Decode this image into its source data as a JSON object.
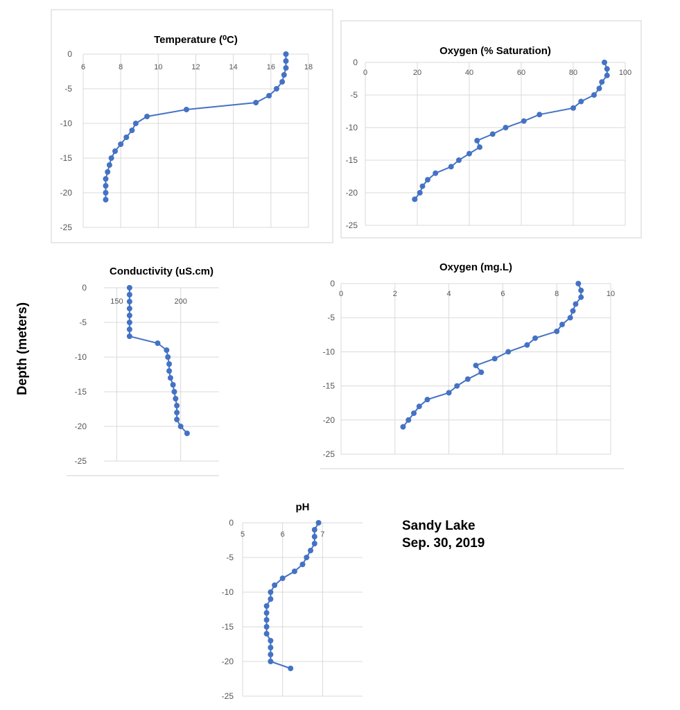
{
  "figure": {
    "ylabel": "Depth (meters)",
    "lake": "Sandy Lake",
    "date": "Sep. 30, 2019"
  },
  "chart_data": [
    {
      "id": "temperature",
      "type": "scatter",
      "title": "Temperature (⁰C)",
      "xlim": [
        6,
        18
      ],
      "xticks": [
        6,
        8,
        10,
        12,
        14,
        16,
        18
      ],
      "ylim": [
        -25,
        0
      ],
      "yticks": [
        0,
        -5,
        -10,
        -15,
        -20,
        -25
      ],
      "grid": true,
      "bordered": true,
      "series": [
        {
          "x": [
            16.8,
            16.8,
            16.8,
            16.7,
            16.6,
            16.3,
            15.9,
            15.2,
            11.5,
            9.4,
            8.8,
            8.6,
            8.3,
            8.0,
            7.7,
            7.5,
            7.4,
            7.3,
            7.2,
            7.2,
            7.2,
            7.2
          ],
          "y": [
            0,
            -1,
            -2,
            -3,
            -4,
            -5,
            -6,
            -7,
            -8,
            -9,
            -10,
            -11,
            -12,
            -13,
            -14,
            -15,
            -16,
            -17,
            -18,
            -19,
            -20,
            -21
          ]
        }
      ]
    },
    {
      "id": "oxygen-saturation",
      "type": "scatter",
      "title": "Oxygen (% Saturation)",
      "xlim": [
        0,
        100
      ],
      "xticks": [
        0,
        20,
        40,
        60,
        80,
        100
      ],
      "ylim": [
        -25,
        0
      ],
      "yticks": [
        0,
        -5,
        -10,
        -15,
        -20,
        -25
      ],
      "grid": true,
      "bordered": true,
      "series": [
        {
          "x": [
            92,
            93,
            93,
            91,
            90,
            88,
            83,
            80,
            67,
            61,
            54,
            49,
            43,
            44,
            40,
            36,
            33,
            27,
            24,
            22,
            21,
            19
          ],
          "y": [
            0,
            -1,
            -2,
            -3,
            -4,
            -5,
            -6,
            -7,
            -8,
            -9,
            -10,
            -11,
            -12,
            -13,
            -14,
            -15,
            -16,
            -17,
            -18,
            -19,
            -20,
            -21
          ]
        }
      ]
    },
    {
      "id": "conductivity",
      "type": "scatter",
      "title": "Conductivity  (uS.cm)",
      "xlim": [
        140,
        230
      ],
      "xticks": [
        150,
        200
      ],
      "ylim": [
        -25,
        0
      ],
      "yticks": [
        0,
        -5,
        -10,
        -15,
        -20,
        -25
      ],
      "grid": true,
      "bordered": true,
      "series": [
        {
          "x": [
            160,
            160,
            160,
            160,
            160,
            160,
            160,
            160,
            182,
            189,
            190,
            191,
            191,
            192,
            194,
            195,
            196,
            197,
            197,
            197,
            200,
            205
          ],
          "y": [
            0,
            -1,
            -2,
            -3,
            -4,
            -5,
            -6,
            -7,
            -8,
            -9,
            -10,
            -11,
            -12,
            -13,
            -14,
            -15,
            -16,
            -17,
            -18,
            -19,
            -20,
            -21
          ]
        }
      ]
    },
    {
      "id": "oxygen-mgl",
      "type": "scatter",
      "title": "Oxygen (mg.L)",
      "xlim": [
        0,
        10
      ],
      "xticks": [
        0,
        2,
        4,
        6,
        8,
        10
      ],
      "ylim": [
        -25,
        0
      ],
      "yticks": [
        0,
        -5,
        -10,
        -15,
        -20,
        -25
      ],
      "grid": true,
      "bordered": true,
      "series": [
        {
          "x": [
            8.8,
            8.9,
            8.9,
            8.7,
            8.6,
            8.5,
            8.2,
            8.0,
            7.2,
            6.9,
            6.2,
            5.7,
            5.0,
            5.2,
            4.7,
            4.3,
            4.0,
            3.2,
            2.9,
            2.7,
            2.5,
            2.3
          ],
          "y": [
            0,
            -1,
            -2,
            -3,
            -4,
            -5,
            -6,
            -7,
            -8,
            -9,
            -10,
            -11,
            -12,
            -13,
            -14,
            -15,
            -16,
            -17,
            -18,
            -19,
            -20,
            -21
          ]
        }
      ]
    },
    {
      "id": "ph",
      "type": "scatter",
      "title": "pH",
      "xlim": [
        5,
        8
      ],
      "xticks": [
        5,
        6,
        7
      ],
      "ylim": [
        -25,
        0
      ],
      "yticks": [
        0,
        -5,
        -10,
        -15,
        -20,
        -25
      ],
      "grid": true,
      "bordered": false,
      "series": [
        {
          "x": [
            6.9,
            6.8,
            6.8,
            6.8,
            6.7,
            6.6,
            6.5,
            6.3,
            6.0,
            5.8,
            5.7,
            5.7,
            5.6,
            5.6,
            5.6,
            5.6,
            5.6,
            5.7,
            5.7,
            5.7,
            5.7,
            6.2
          ],
          "y": [
            0,
            -1,
            -2,
            -3,
            -4,
            -5,
            -6,
            -7,
            -8,
            -9,
            -10,
            -11,
            -12,
            -13,
            -14,
            -15,
            -16,
            -17,
            -18,
            -19,
            -20,
            -21
          ]
        }
      ]
    }
  ]
}
